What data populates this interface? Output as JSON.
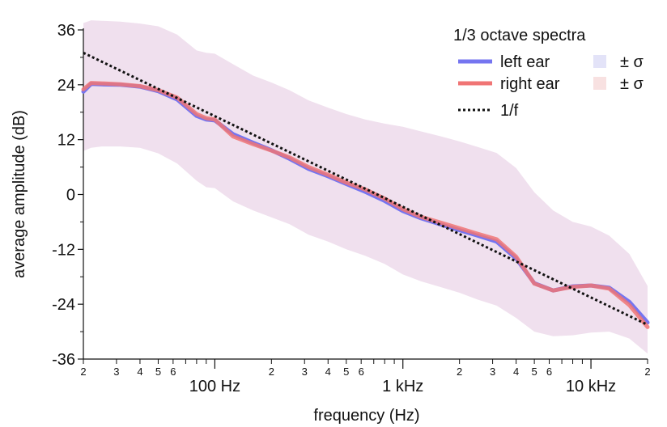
{
  "chart_data": {
    "type": "line",
    "title": "",
    "legend_title": "1/3 octave spectra",
    "legend_position": "top-right",
    "xlabel": "frequency (Hz)",
    "ylabel": "average amplitude (dB)",
    "x_scale": "log",
    "xlim": [
      20,
      20000
    ],
    "ylim": [
      -36,
      36
    ],
    "y_ticks": [
      {
        "value": 36,
        "label": "36"
      },
      {
        "value": 24,
        "label": "24"
      },
      {
        "value": 12,
        "label": "12"
      },
      {
        "value": 0,
        "label": "0"
      },
      {
        "value": -12,
        "label": "-12"
      },
      {
        "value": -24,
        "label": "-24"
      },
      {
        "value": -36,
        "label": "-36"
      }
    ],
    "x_major_labels": [
      {
        "value": 100,
        "label": "100 Hz"
      },
      {
        "value": 1000,
        "label": "1 kHz"
      },
      {
        "value": 10000,
        "label": "10 kHz"
      }
    ],
    "x_minor_labels": [
      {
        "value": 20,
        "label": "2"
      },
      {
        "value": 30,
        "label": "3"
      },
      {
        "value": 40,
        "label": "4"
      },
      {
        "value": 50,
        "label": "5"
      },
      {
        "value": 60,
        "label": "6"
      },
      {
        "value": 200,
        "label": "2"
      },
      {
        "value": 300,
        "label": "3"
      },
      {
        "value": 400,
        "label": "4"
      },
      {
        "value": 500,
        "label": "5"
      },
      {
        "value": 600,
        "label": "6"
      },
      {
        "value": 2000,
        "label": "2"
      },
      {
        "value": 3000,
        "label": "3"
      },
      {
        "value": 4000,
        "label": "4"
      },
      {
        "value": 5000,
        "label": "5"
      },
      {
        "value": 6000,
        "label": "6"
      },
      {
        "value": 20000,
        "label": "2"
      }
    ],
    "x": [
      20,
      22,
      25,
      31.5,
      40,
      50,
      63,
      80,
      90,
      100,
      125,
      160,
      200,
      250,
      315,
      400,
      500,
      630,
      800,
      1000,
      1250,
      1600,
      2000,
      2500,
      3150,
      4000,
      5000,
      6300,
      8000,
      10000,
      12500,
      16000,
      20000
    ],
    "series": [
      {
        "name": "left ear",
        "color": "#7575f0",
        "values": [
          22.5,
          24.2,
          24.1,
          24.0,
          23.6,
          22.6,
          20.8,
          17.2,
          16.4,
          16.2,
          13.2,
          11.3,
          9.7,
          7.8,
          5.6,
          4.0,
          2.3,
          0.6,
          -1.4,
          -3.6,
          -5.2,
          -6.6,
          -7.8,
          -9.0,
          -10.3,
          -14.0,
          -19.4,
          -21.0,
          -20.1,
          -19.9,
          -20.4,
          -23.5,
          -28.0
        ]
      },
      {
        "name": "right ear",
        "color": "#f07575",
        "values": [
          23.0,
          24.4,
          24.3,
          24.1,
          23.7,
          22.8,
          21.2,
          17.6,
          16.7,
          16.4,
          12.7,
          11.0,
          9.6,
          8.1,
          6.0,
          4.3,
          2.6,
          1.1,
          -0.9,
          -3.2,
          -4.9,
          -6.2,
          -7.4,
          -8.6,
          -9.8,
          -13.6,
          -19.5,
          -21.0,
          -20.2,
          -19.9,
          -20.6,
          -24.2,
          -29.0
        ]
      }
    ],
    "sigma_band": {
      "upper": [
        37.5,
        38.1,
        38.0,
        37.8,
        37.4,
        36.8,
        35.0,
        31.5,
        31.0,
        30.8,
        28.5,
        26.0,
        24.5,
        22.8,
        20.6,
        19.0,
        17.6,
        16.4,
        15.5,
        14.8,
        13.8,
        12.7,
        11.6,
        10.4,
        9.1,
        5.8,
        0.5,
        -3.5,
        -6.0,
        -7.0,
        -9.0,
        -13.0,
        -20.0
      ],
      "lower": [
        9.5,
        10.2,
        10.5,
        10.5,
        10.2,
        9.0,
        6.8,
        3.0,
        1.6,
        1.4,
        -1.5,
        -3.5,
        -5.0,
        -6.5,
        -8.8,
        -10.3,
        -12.0,
        -13.4,
        -15.2,
        -17.5,
        -19.0,
        -20.3,
        -21.5,
        -23.0,
        -24.3,
        -27.0,
        -30.0,
        -31.0,
        -30.8,
        -30.2,
        -30.0,
        -31.5,
        -34.8
      ],
      "color": "#f0e0ee"
    },
    "legend_entries": [
      {
        "label": "left ear",
        "color": "#7575f0",
        "style": "line"
      },
      {
        "label": "right ear",
        "color": "#f07575",
        "style": "line"
      },
      {
        "label": "1/f",
        "color": "#111111",
        "style": "dotted"
      },
      {
        "label": "± σ",
        "color": "#e3e3f8",
        "style": "patch"
      },
      {
        "label": "± σ",
        "color": "#f8e1e1",
        "style": "patch"
      }
    ],
    "reference_line": {
      "name": "1/f",
      "x": [
        20,
        20000
      ],
      "values": [
        31.0,
        -28.5
      ]
    }
  }
}
